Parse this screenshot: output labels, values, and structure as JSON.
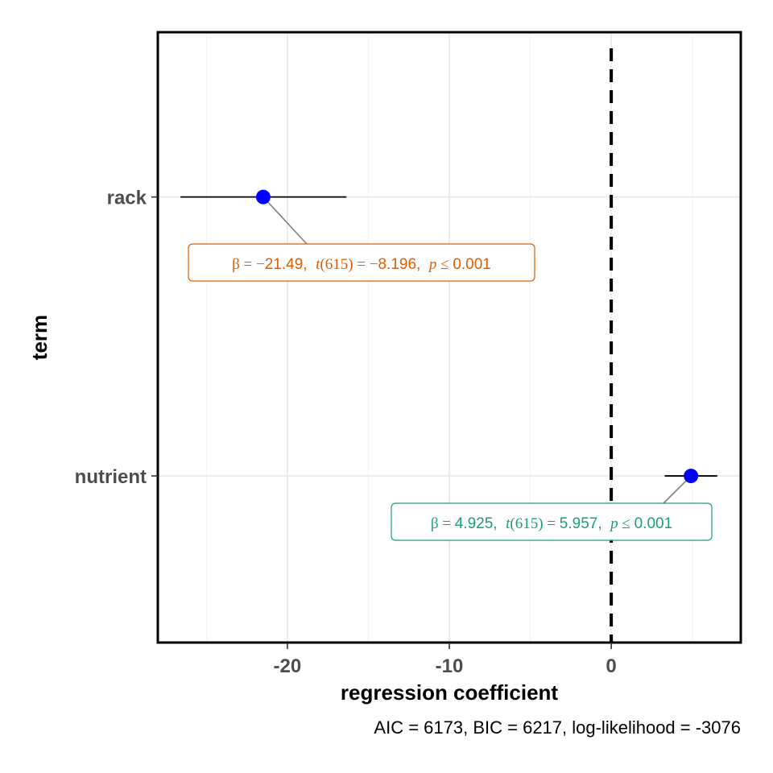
{
  "chart_data": {
    "type": "scatter",
    "subtype": "coefficient-plot",
    "xlabel": "regression coefficient",
    "ylabel": "term",
    "caption": "AIC = 6173, BIC = 6217, log-likelihood = -3076",
    "xlim": [
      -28,
      8
    ],
    "x_ticks": [
      -20,
      -10,
      0
    ],
    "x_tick_labels": [
      "-20",
      "-10",
      "0"
    ],
    "grid": true,
    "reference_line": {
      "x": 0,
      "style": "dashed",
      "color": "#000000"
    },
    "point_color": "#0000ff",
    "terms": [
      {
        "term": "rack",
        "estimate": -21.49,
        "conf_low": -26.6,
        "conf_high": -16.35,
        "label_color": "#d95f02",
        "label": {
          "beta_sym": "β",
          "eq": "=",
          "minus": "−",
          "beta": "21.49",
          "t_sym": "t",
          "df": "(615)",
          "t": "8.196",
          "p_sym": "p",
          "le": "≤",
          "p": "0.001"
        }
      },
      {
        "term": "nutrient",
        "estimate": 4.925,
        "conf_low": 3.3,
        "conf_high": 6.55,
        "label_color": "#1b9e77",
        "label": {
          "beta_sym": "β",
          "eq": "=",
          "minus": "",
          "beta": "4.925",
          "t_sym": "t",
          "df": "(615)",
          "t": "5.957",
          "p_sym": "p",
          "le": "≤",
          "p": "0.001"
        }
      }
    ]
  }
}
